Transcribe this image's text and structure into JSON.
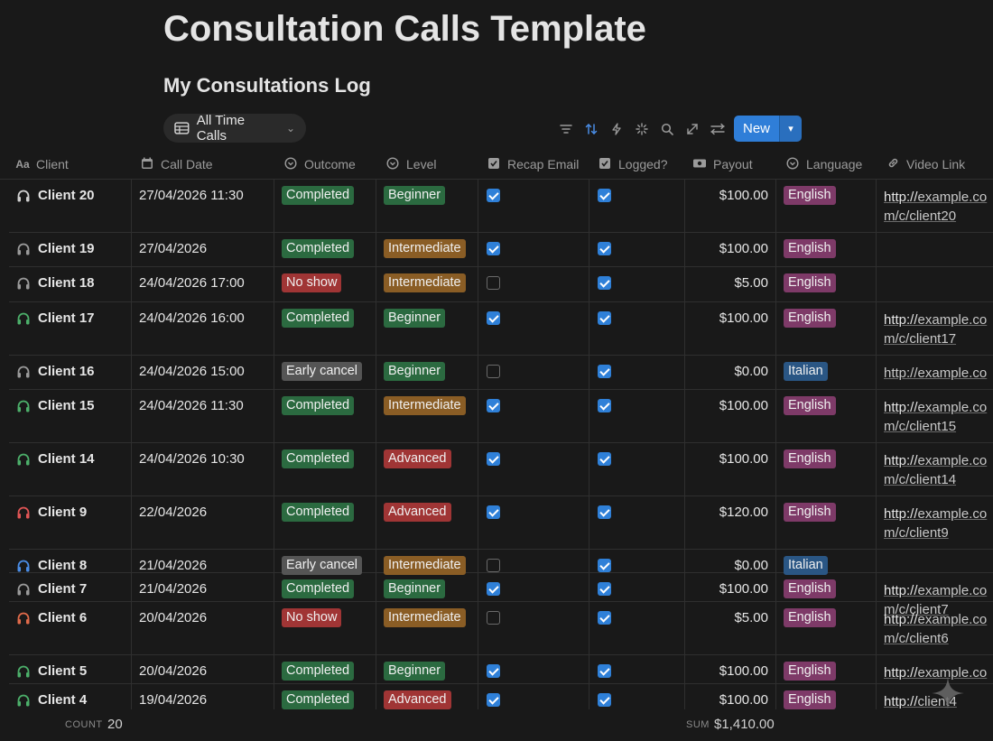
{
  "page": {
    "title": "Consultation Calls Template",
    "subtitle": "My Consultations Log"
  },
  "view": {
    "label": "All Time Calls",
    "icon": "table-icon"
  },
  "toolbar": {
    "icons": [
      "filter-icon",
      "sort-icon",
      "lightning-icon",
      "sparkle-icon",
      "search-icon",
      "expand-icon",
      "settings-icon"
    ],
    "new_label": "New"
  },
  "columns": [
    {
      "label": "Client",
      "icon": "title-icon"
    },
    {
      "label": "Call Date",
      "icon": "calendar-icon"
    },
    {
      "label": "Outcome",
      "icon": "select-icon"
    },
    {
      "label": "Level",
      "icon": "select-icon"
    },
    {
      "label": "Recap Email",
      "icon": "checkbox-icon"
    },
    {
      "label": "Logged?",
      "icon": "checkbox-icon"
    },
    {
      "label": "Payout",
      "icon": "money-icon"
    },
    {
      "label": "Language",
      "icon": "select-icon"
    },
    {
      "label": "Video Link",
      "icon": "link-icon"
    }
  ],
  "rows": [
    {
      "client": "Client 20",
      "date": "27/04/2026 11:30",
      "outcome": "Completed",
      "level": "Beginner",
      "recap": true,
      "logged": true,
      "payout": "$100.00",
      "language": "English",
      "video_prefix": "http://",
      "video_rest": "example.com/c/client20",
      "icon_color": "#d0d0d0"
    },
    {
      "client": "Client 19",
      "date": "27/04/2026",
      "outcome": "Completed",
      "level": "Intermediate",
      "recap": true,
      "logged": true,
      "payout": "$100.00",
      "language": "English",
      "video_prefix": "",
      "video_rest": "",
      "icon_color": "#9a9a9a"
    },
    {
      "client": "Client 18",
      "date": "24/04/2026 17:00",
      "outcome": "No show",
      "level": "Intermediate",
      "recap": false,
      "logged": true,
      "payout": "$5.00",
      "language": "English",
      "video_prefix": "",
      "video_rest": "",
      "icon_color": "#9a9a9a"
    },
    {
      "client": "Client 17",
      "date": "24/04/2026 16:00",
      "outcome": "Completed",
      "level": "Beginner",
      "recap": true,
      "logged": true,
      "payout": "$100.00",
      "language": "English",
      "video_prefix": "http://",
      "video_rest": "example.com/c/client17",
      "icon_color": "#4caf6a"
    },
    {
      "client": "Client 16",
      "date": "24/04/2026 15:00",
      "outcome": "Early cancel",
      "level": "Beginner",
      "recap": false,
      "logged": true,
      "payout": "$0.00",
      "language": "Italian",
      "video_prefix": "",
      "video_rest": "http://example.co",
      "icon_color": "#9a9a9a"
    },
    {
      "client": "Client 15",
      "date": "24/04/2026 11:30",
      "outcome": "Completed",
      "level": "Intermediate",
      "recap": true,
      "logged": true,
      "payout": "$100.00",
      "language": "English",
      "video_prefix": "http://",
      "video_rest": "example.com/c/client15",
      "icon_color": "#4caf6a"
    },
    {
      "client": "Client 14",
      "date": "24/04/2026 10:30",
      "outcome": "Completed",
      "level": "Advanced",
      "recap": true,
      "logged": true,
      "payout": "$100.00",
      "language": "English",
      "video_prefix": "http://",
      "video_rest": "example.com/c/client14",
      "icon_color": "#4caf6a"
    },
    {
      "client": "Client 9",
      "date": "22/04/2026",
      "outcome": "Completed",
      "level": "Advanced",
      "recap": true,
      "logged": true,
      "payout": "$120.00",
      "language": "English",
      "video_prefix": "http://",
      "video_rest": "example.com/c/client9",
      "icon_color": "#e05555"
    },
    {
      "client": "Client 8",
      "date": "21/04/2026",
      "outcome": "Early cancel",
      "level": "Intermediate",
      "recap": false,
      "logged": true,
      "payout": "$0.00",
      "language": "Italian",
      "video_prefix": "",
      "video_rest": "",
      "icon_color": "#4a8de6"
    },
    {
      "client": "Client 7",
      "date": "21/04/2026",
      "outcome": "Completed",
      "level": "Beginner",
      "recap": true,
      "logged": true,
      "payout": "$100.00",
      "language": "English",
      "video_prefix": "http://",
      "video_rest": "example.com/c/client7",
      "icon_color": "#9a9a9a"
    },
    {
      "client": "Client 6",
      "date": "20/04/2026",
      "outcome": "No show",
      "level": "Intermediate",
      "recap": false,
      "logged": true,
      "payout": "$5.00",
      "language": "English",
      "video_prefix": "http://",
      "video_rest": "example.com/c/client6",
      "icon_color": "#e06a4a"
    },
    {
      "client": "Client 5",
      "date": "20/04/2026",
      "outcome": "Completed",
      "level": "Beginner",
      "recap": true,
      "logged": true,
      "payout": "$100.00",
      "language": "English",
      "video_prefix": "http://",
      "video_rest": "example.co",
      "icon_color": "#4caf6a"
    },
    {
      "client": "Client 4",
      "date": "19/04/2026",
      "outcome": "Completed",
      "level": "Advanced",
      "recap": true,
      "logged": true,
      "payout": "$100.00",
      "language": "English",
      "video_prefix": "http://",
      "video_rest": "client4",
      "icon_color": "#4caf6a"
    }
  ],
  "footer": {
    "count_label": "COUNT",
    "count_value": "20",
    "sum_label": "SUM",
    "sum_value": "$1,410.00"
  }
}
